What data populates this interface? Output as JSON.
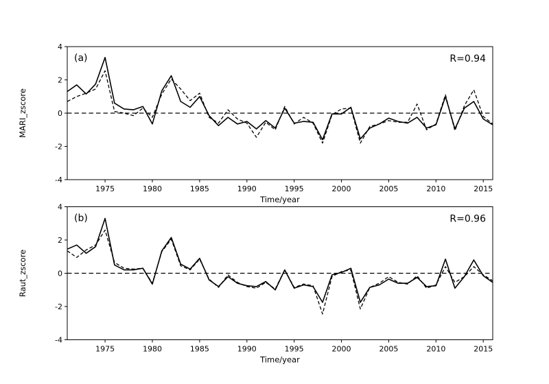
{
  "colors": {
    "background": "#ffffff",
    "line": "#000000",
    "text": "#000000"
  },
  "chart_data": [
    {
      "type": "line",
      "id": "a",
      "panel_label": "(a)",
      "r_label": "R=0.94",
      "xlabel": "Time/year",
      "ylabel": "MARI_zscore",
      "xlim": [
        1971,
        2016
      ],
      "ylim": [
        -4,
        4
      ],
      "xticks": [
        1975,
        1980,
        1985,
        1990,
        1995,
        2000,
        2005,
        2010,
        2015
      ],
      "xtick_labels": [
        "1975",
        "1980",
        "1985",
        "1990",
        "1995",
        "2000",
        "2005",
        "2010",
        "2015"
      ],
      "yticks": [
        4,
        2,
        0,
        -2,
        -4
      ],
      "ytick_labels": [
        "4",
        "2",
        "0",
        "-2",
        "-4"
      ],
      "zero_line": true,
      "grid": false,
      "legend": "none",
      "x": [
        1971,
        1972,
        1973,
        1974,
        1975,
        1976,
        1977,
        1978,
        1979,
        1980,
        1981,
        1982,
        1983,
        1984,
        1985,
        1986,
        1987,
        1988,
        1989,
        1990,
        1991,
        1992,
        1993,
        1994,
        1995,
        1996,
        1997,
        1998,
        1999,
        2000,
        2001,
        2002,
        2003,
        2004,
        2005,
        2006,
        2007,
        2008,
        2009,
        2010,
        2011,
        2012,
        2013,
        2014,
        2015,
        2016
      ],
      "series": [
        {
          "name": "solid",
          "style": "solid",
          "values": [
            1.3,
            1.7,
            1.15,
            1.75,
            3.35,
            0.6,
            0.25,
            0.2,
            0.4,
            -0.65,
            1.35,
            2.25,
            0.7,
            0.35,
            1.0,
            -0.15,
            -0.75,
            -0.25,
            -0.65,
            -0.5,
            -0.95,
            -0.45,
            -0.9,
            0.3,
            -0.6,
            -0.5,
            -0.55,
            -1.6,
            -0.05,
            -0.05,
            0.35,
            -1.55,
            -0.9,
            -0.65,
            -0.3,
            -0.5,
            -0.6,
            -0.25,
            -0.9,
            -0.7,
            1.0,
            -0.95,
            0.3,
            0.7,
            -0.35,
            -0.7
          ]
        },
        {
          "name": "dashed",
          "style": "dashed",
          "values": [
            0.7,
            1.0,
            1.2,
            1.45,
            2.55,
            0.1,
            0.0,
            -0.15,
            0.3,
            -0.25,
            1.15,
            2.05,
            1.45,
            0.75,
            1.2,
            -0.25,
            -0.6,
            0.2,
            -0.35,
            -0.6,
            -1.45,
            -0.55,
            -1.0,
            0.4,
            -0.65,
            -0.25,
            -0.6,
            -1.8,
            -0.1,
            0.25,
            0.3,
            -1.8,
            -0.8,
            -0.65,
            -0.45,
            -0.55,
            -0.55,
            0.55,
            -1.0,
            -0.65,
            1.1,
            -1.05,
            0.45,
            1.4,
            -0.2,
            -0.65
          ]
        }
      ]
    },
    {
      "type": "line",
      "id": "b",
      "panel_label": "(b)",
      "r_label": "R=0.96",
      "xlabel": "Time/year",
      "ylabel": "Raut_zscore",
      "xlim": [
        1971,
        2016
      ],
      "ylim": [
        -4,
        4
      ],
      "xticks": [
        1975,
        1980,
        1985,
        1990,
        1995,
        2000,
        2005,
        2010,
        2015
      ],
      "xtick_labels": [
        "1975",
        "1980",
        "1985",
        "1990",
        "1995",
        "2000",
        "2005",
        "2010",
        "2015"
      ],
      "yticks": [
        4,
        2,
        0,
        -2,
        -4
      ],
      "ytick_labels": [
        "4",
        "2",
        "0",
        "-2",
        "-4"
      ],
      "zero_line": true,
      "grid": false,
      "legend": "none",
      "x": [
        1971,
        1972,
        1973,
        1974,
        1975,
        1976,
        1977,
        1978,
        1979,
        1980,
        1981,
        1982,
        1983,
        1984,
        1985,
        1986,
        1987,
        1988,
        1989,
        1990,
        1991,
        1992,
        1993,
        1994,
        1995,
        1996,
        1997,
        1998,
        1999,
        2000,
        2001,
        2002,
        2003,
        2004,
        2005,
        2006,
        2007,
        2008,
        2009,
        2010,
        2011,
        2012,
        2013,
        2014,
        2015,
        2016
      ],
      "series": [
        {
          "name": "solid",
          "style": "solid",
          "values": [
            1.45,
            1.7,
            1.2,
            1.6,
            3.3,
            0.5,
            0.2,
            0.2,
            0.3,
            -0.65,
            1.35,
            2.15,
            0.55,
            0.25,
            0.9,
            -0.4,
            -0.8,
            -0.2,
            -0.6,
            -0.75,
            -0.8,
            -0.5,
            -1.0,
            0.2,
            -0.9,
            -0.7,
            -0.8,
            -1.75,
            -0.1,
            0.05,
            0.3,
            -1.75,
            -0.85,
            -0.7,
            -0.35,
            -0.6,
            -0.6,
            -0.25,
            -0.8,
            -0.75,
            0.85,
            -0.9,
            -0.2,
            0.8,
            -0.15,
            -0.55
          ]
        },
        {
          "name": "dashed",
          "style": "dashed",
          "values": [
            1.35,
            0.95,
            1.4,
            1.7,
            2.6,
            0.65,
            0.3,
            0.25,
            0.3,
            -0.6,
            1.3,
            2.05,
            0.45,
            0.2,
            0.85,
            -0.35,
            -0.85,
            -0.1,
            -0.55,
            -0.8,
            -0.9,
            -0.55,
            -0.95,
            0.2,
            -0.85,
            -0.65,
            -0.75,
            -2.45,
            -0.2,
            0.1,
            0.2,
            -2.15,
            -0.85,
            -0.6,
            -0.2,
            -0.55,
            -0.65,
            -0.15,
            -0.9,
            -0.7,
            0.4,
            -0.55,
            -0.2,
            0.4,
            -0.1,
            -0.45
          ]
        }
      ]
    }
  ]
}
